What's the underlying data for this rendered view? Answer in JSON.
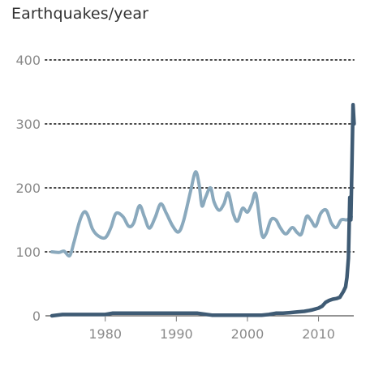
{
  "chart_data": {
    "type": "line",
    "title": "",
    "xlabel": "",
    "ylabel": "Earthquakes/year",
    "xlim": [
      1972,
      2015
    ],
    "ylim": [
      0,
      400
    ],
    "yticks": [
      "0",
      "100",
      "200",
      "300",
      "400"
    ],
    "xticks": [
      "1980",
      "1990",
      "2000",
      "2010"
    ],
    "xtick_values": [
      1980,
      1990,
      2000,
      2010
    ],
    "ytick_values": [
      0,
      100,
      200,
      300,
      400
    ],
    "grid": "horizontal dotted",
    "series": [
      {
        "color": "#8aa9bd",
        "x": [
          1972.5,
          1973.5,
          1974.2,
          1975.0,
          1975.6,
          1976.4,
          1977.0,
          1977.5,
          1978.2,
          1979.0,
          1980.0,
          1980.8,
          1981.5,
          1982.5,
          1983.3,
          1984.0,
          1984.8,
          1985.5,
          1986.2,
          1987.0,
          1987.8,
          1988.6,
          1989.5,
          1990.3,
          1991.0,
          1992.0,
          1992.7,
          1993.2,
          1993.6,
          1994.1,
          1994.8,
          1995.3,
          1996.0,
          1996.7,
          1997.3,
          1998.0,
          1998.6,
          1999.3,
          2000.0,
          2000.6,
          2001.2,
          2002.0,
          2002.6,
          2003.3,
          2004.0,
          2004.6,
          2005.4,
          2006.3,
          2007.0,
          2007.6,
          2008.3,
          2008.9,
          2009.6,
          2010.3,
          2011.1,
          2011.8,
          2012.5,
          2013.2,
          2014.0,
          2014.6
        ],
        "values": [
          100,
          99,
          101,
          94,
          115,
          148,
          162,
          158,
          136,
          125,
          122,
          138,
          160,
          155,
          140,
          145,
          172,
          155,
          137,
          153,
          175,
          160,
          140,
          131,
          148,
          195,
          225,
          205,
          172,
          185,
          200,
          178,
          165,
          175,
          192,
          160,
          148,
          168,
          162,
          175,
          190,
          128,
          128,
          150,
          150,
          138,
          128,
          138,
          130,
          128,
          155,
          150,
          140,
          160,
          165,
          145,
          138,
          150,
          150,
          155
        ]
      },
      {
        "color": "#3f5b74",
        "x": [
          1972.5,
          1974.0,
          1976.0,
          1978.0,
          1979.5,
          1980.0,
          1981.0,
          1983.0,
          1986.0,
          1989.0,
          1991.0,
          1993.0,
          1995.0,
          1998.0,
          2000.0,
          2002.0,
          2003.0,
          2004.0,
          2005.0,
          2006.0,
          2007.0,
          2008.0,
          2009.0,
          2010.0,
          2010.5,
          2011.0,
          2011.5,
          2012.0,
          2012.5,
          2013.0,
          2013.5,
          2013.8,
          2014.0,
          2014.2,
          2014.4,
          2014.55,
          2014.7,
          2014.85,
          2015.0
        ],
        "values": [
          0,
          2,
          2,
          2,
          2,
          2,
          4,
          4,
          4,
          4,
          4,
          4,
          1,
          1,
          1,
          1,
          2,
          4,
          4,
          5,
          6,
          7,
          9,
          12,
          15,
          21,
          24,
          26,
          27,
          29,
          38,
          45,
          60,
          90,
          185,
          150,
          240,
          330,
          300
        ]
      }
    ]
  }
}
